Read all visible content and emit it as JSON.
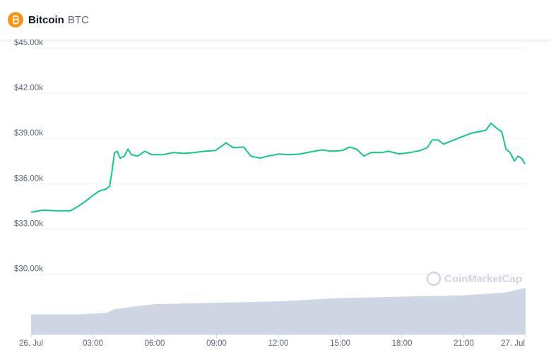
{
  "header": {
    "title": "Bitcoin",
    "symbol": "BTC"
  },
  "chart_data": {
    "type": "line",
    "watermark": "CoinMarketCap",
    "x": [
      0,
      0.55,
      1.23,
      1.92,
      2.26,
      2.61,
      2.95,
      3.29,
      3.63,
      3.81,
      3.91,
      4.05,
      4.18,
      4.32,
      4.53,
      4.7,
      4.87,
      5.18,
      5.52,
      5.86,
      6.38,
      6.89,
      7.41,
      7.92,
      8.43,
      8.95,
      9.29,
      9.46,
      9.81,
      10.32,
      10.66,
      11.11,
      11.52,
      12.03,
      12.55,
      13.06,
      13.58,
      14.09,
      14.61,
      15.12,
      15.46,
      15.8,
      16.15,
      16.49,
      17.01,
      17.35,
      17.86,
      18.38,
      18.89,
      19.23,
      19.47,
      19.75,
      20.02,
      20.43,
      20.95,
      21.39,
      21.81,
      22.08,
      22.32,
      22.67,
      22.84,
      23.05,
      23.25,
      23.46,
      23.63,
      23.8,
      23.97
    ],
    "series": [
      {
        "color": "#16c784",
        "values": [
          34100,
          34240,
          34200,
          34200,
          34480,
          34800,
          35170,
          35500,
          35640,
          35820,
          36660,
          38060,
          38150,
          37690,
          37830,
          38290,
          37920,
          37830,
          38150,
          37920,
          37920,
          38060,
          38010,
          38060,
          38150,
          38200,
          38530,
          38710,
          38390,
          38430,
          37830,
          37690,
          37830,
          37970,
          37920,
          37970,
          38110,
          38240,
          38150,
          38200,
          38430,
          38290,
          37830,
          38060,
          38060,
          38150,
          37970,
          38060,
          38200,
          38390,
          38900,
          38900,
          38620,
          38850,
          39130,
          39360,
          39460,
          39550,
          40010,
          39600,
          39460,
          38290,
          38060,
          37500,
          37830,
          37690,
          37310
        ]
      }
    ],
    "volume": {
      "color": "#cfd6e4",
      "ylim": [
        0,
        100
      ],
      "x": [
        0,
        2.26,
        3.63,
        4.05,
        5,
        6,
        9,
        12,
        15,
        18,
        21,
        23,
        24
      ],
      "values": [
        43,
        43,
        46,
        54,
        60,
        65,
        68,
        71,
        78,
        81,
        84,
        90,
        100
      ]
    },
    "xlim": [
      0,
      24
    ],
    "xticks": [
      {
        "value": 0,
        "label": "26. Jul"
      },
      {
        "value": 3,
        "label": "03:00"
      },
      {
        "value": 6,
        "label": "06:00"
      },
      {
        "value": 9,
        "label": "09:00"
      },
      {
        "value": 12,
        "label": "12:00"
      },
      {
        "value": 15,
        "label": "15:00"
      },
      {
        "value": 18,
        "label": "18:00"
      },
      {
        "value": 21,
        "label": "21:00"
      },
      {
        "value": 24,
        "label": "27. Jul"
      }
    ],
    "ylim": [
      26000,
      45000
    ],
    "yticks": [
      {
        "value": 30000,
        "label": "$30.00k"
      },
      {
        "value": 33000,
        "label": "$33.00k"
      },
      {
        "value": 36000,
        "label": "$36.00k"
      },
      {
        "value": 39000,
        "label": "$39.00k"
      },
      {
        "value": 42000,
        "label": "$42.00k"
      },
      {
        "value": 45000,
        "label": "$45.00k"
      }
    ],
    "grid": true
  }
}
